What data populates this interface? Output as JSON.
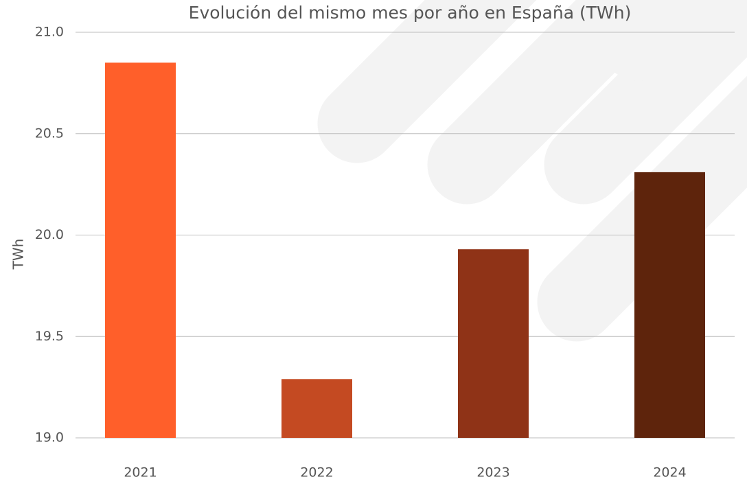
{
  "chart_data": {
    "type": "bar",
    "title": "Evolución del mismo mes por año en España (TWh)",
    "y_label": "TWh",
    "categories": [
      "2021",
      "2022",
      "2023",
      "2024"
    ],
    "values": [
      20.85,
      19.29,
      19.93,
      20.31
    ],
    "colors": [
      "#ff5f2a",
      "#c44a22",
      "#8f3317",
      "#5e240c"
    ],
    "ylim": [
      19,
      21
    ],
    "yticks": [
      {
        "value": 19,
        "label": "19.0"
      },
      {
        "value": 19.5,
        "label": "19.5"
      },
      {
        "value": 20,
        "label": "20.0"
      },
      {
        "value": 20.5,
        "label": "20.5"
      },
      {
        "value": 21,
        "label": "21.0"
      }
    ],
    "grid": true
  }
}
